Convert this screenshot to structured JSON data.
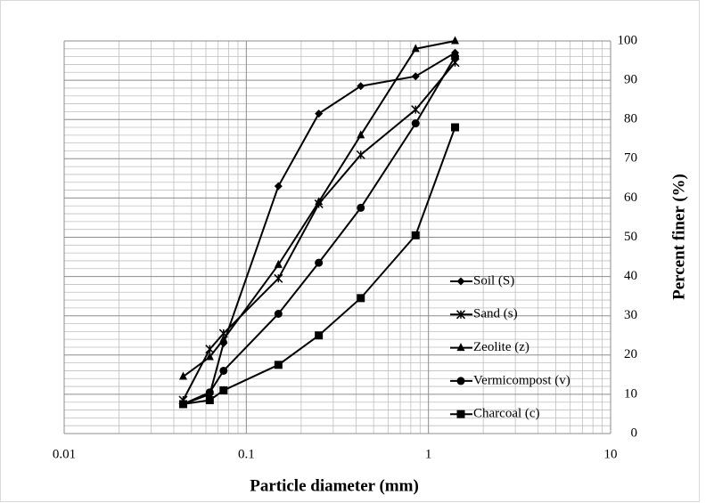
{
  "chart_data": {
    "type": "line",
    "x_label": "Particle diameter (mm)",
    "y_label": "Percent finer (%)",
    "x": [
      0.045,
      0.063,
      0.075,
      0.15,
      0.25,
      0.425,
      0.85,
      1.4
    ],
    "series": [
      {
        "name": "Soil (S)",
        "color": "#000000",
        "marker": "diamond",
        "values": [
          7.5,
          10,
          23,
          63,
          81.5,
          88.5,
          91,
          97
        ]
      },
      {
        "name": "Sand (s)",
        "color": "#000000",
        "marker": "star",
        "values": [
          8.5,
          21.5,
          25.5,
          39.5,
          58.5,
          71,
          82.5,
          94.5
        ]
      },
      {
        "name": "Zeolite (z)",
        "color": "#000000",
        "marker": "triangle",
        "values": [
          14.5,
          19.5,
          24,
          43,
          59,
          76,
          98,
          100
        ]
      },
      {
        "name": "Vermicompost (v)",
        "color": "#000000",
        "marker": "circle",
        "values": [
          7.5,
          10.5,
          16,
          30.5,
          43.5,
          57.5,
          79,
          96
        ]
      },
      {
        "name": "Charcoal (c)",
        "color": "#000000",
        "marker": "square",
        "values": [
          7.5,
          8.5,
          11,
          17.5,
          25,
          34.5,
          50.5,
          78
        ]
      }
    ],
    "x_log": true,
    "xlim": [
      0.01,
      10
    ],
    "xticks": [
      0.01,
      0.1,
      1,
      10
    ],
    "ylim": [
      0,
      100
    ],
    "yticks": [
      0,
      10,
      20,
      30,
      40,
      50,
      60,
      70,
      80,
      90,
      100
    ],
    "grid": true,
    "minor_grid": true,
    "y_axis_side": "right",
    "legend": "right"
  }
}
